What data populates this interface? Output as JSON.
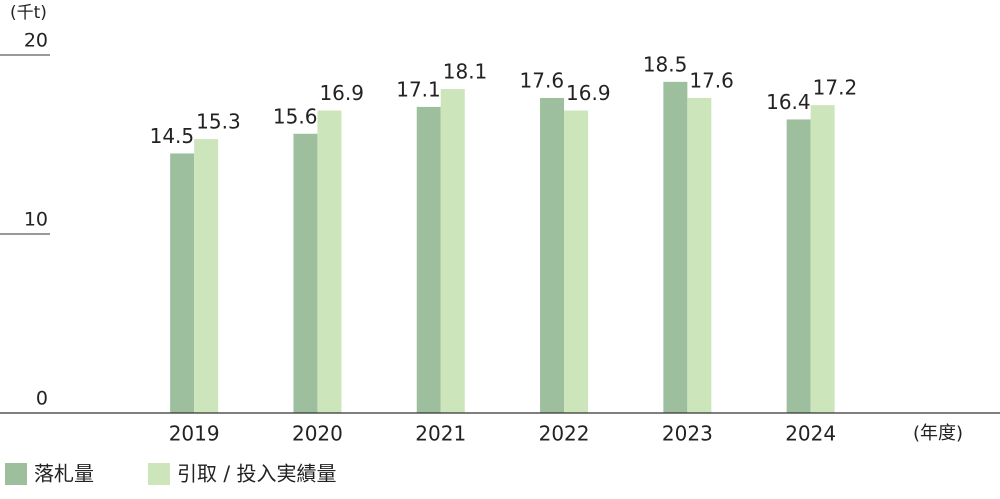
{
  "chart_data": {
    "type": "bar",
    "y_label": "(千t)",
    "x_label": "(年度)",
    "categories": [
      "2019",
      "2020",
      "2021",
      "2022",
      "2023",
      "2024"
    ],
    "series": [
      {
        "name": "落札量",
        "color": "#9dbf9e",
        "values": [
          14.5,
          15.6,
          17.1,
          17.6,
          18.5,
          16.4
        ]
      },
      {
        "name": "引取 / 投入実績量",
        "color": "#cce5bb",
        "values": [
          15.3,
          16.9,
          18.1,
          16.9,
          17.6,
          17.2
        ]
      }
    ],
    "ylim": [
      0,
      20
    ],
    "yticks": [
      0,
      10,
      20
    ],
    "legend": "bottom-left"
  }
}
